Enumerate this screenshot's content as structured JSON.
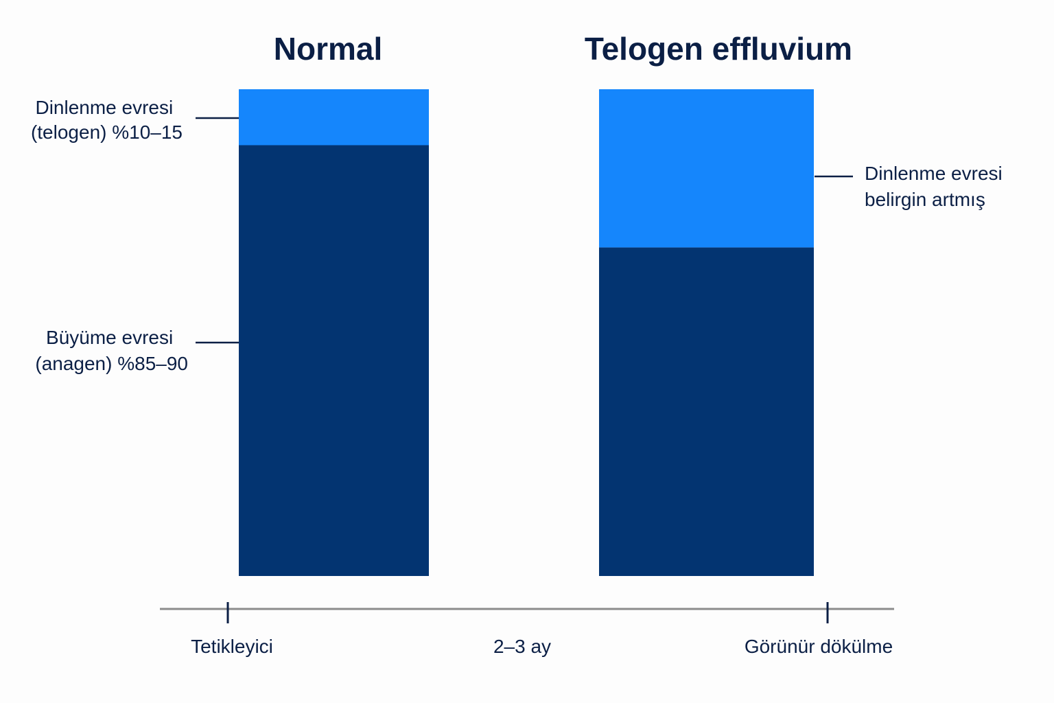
{
  "chart_data": {
    "type": "bar",
    "stacked": true,
    "categories": [
      "Normal",
      "Telogen effluvium"
    ],
    "series": [
      {
        "name": "Büyüme evresi (anagen)",
        "values": [
          88.5,
          67.5
        ],
        "color": "#033471"
      },
      {
        "name": "Dinlenme evresi (telogen)",
        "values": [
          11.5,
          32.5
        ],
        "color": "#1586fc"
      }
    ],
    "ylim": [
      0,
      100
    ],
    "annotations": {
      "telogen_normal": [
        "Dinlenme evresi",
        "(telogen) %10–15"
      ],
      "anagen_normal": [
        "Büyüme evresi",
        "(anagen) %85–90"
      ],
      "telogen_te": [
        "Dinlenme evresi",
        "belirgin artmış"
      ]
    },
    "timeline": {
      "labels": [
        "Tetikleyici",
        "2–3 ay",
        "Görünür dökülme"
      ]
    }
  }
}
